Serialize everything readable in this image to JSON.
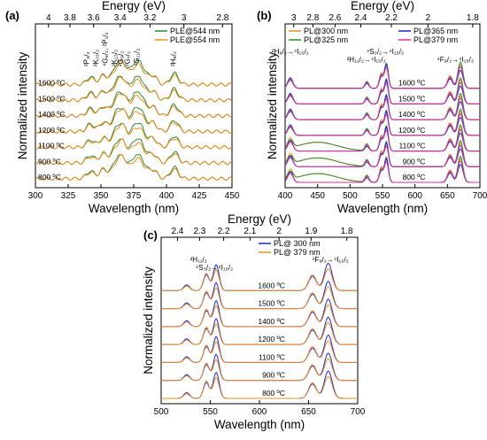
{
  "chart_data": [
    {
      "panel": "(a)",
      "type": "line",
      "xlabel": "Wavelength (nm)",
      "ylabel": "Normalized intensity",
      "top_axis_label": "Energy (eV)",
      "xlim": [
        300,
        450
      ],
      "x_ticks": [
        "300",
        "325",
        "350",
        "375",
        "400",
        "425",
        "450"
      ],
      "top_ticks": [
        {
          "label": "4",
          "nm": 310
        },
        {
          "label": "3.8",
          "nm": 326.3
        },
        {
          "label": "3.6",
          "nm": 344.4
        },
        {
          "label": "3.4",
          "nm": 364.7
        },
        {
          "label": "3.2",
          "nm": 387.5
        },
        {
          "label": "3",
          "nm": 413.3
        },
        {
          "label": "2.8",
          "nm": 442.8
        }
      ],
      "temperatures": [
        "1600 ºC",
        "1500 ºC",
        "1400 ºC",
        "1200 ºC",
        "1100 ºC",
        "900 ºC",
        "800 ºC"
      ],
      "series": [
        {
          "name": "PLE@544 nm",
          "color": "#2e8b2e"
        },
        {
          "name": "PLE@554 nm",
          "color": "#f08c1e"
        }
      ],
      "peaks": [
        {
          "x": 342,
          "h": 0.3,
          "w": 3
        },
        {
          "x": 352,
          "h": 0.35,
          "w": 3
        },
        {
          "x": 362,
          "h": 0.7,
          "w": 3.5
        },
        {
          "x": 367,
          "h": 0.55,
          "w": 3
        },
        {
          "x": 378,
          "h": 1.0,
          "w": 5
        },
        {
          "x": 390,
          "h": 0.3,
          "w": 3
        },
        {
          "x": 406,
          "h": 0.45,
          "w": 3
        }
      ],
      "transitions": [
        {
          "label": "²P₃/₂",
          "nm": 341
        },
        {
          "label": "²K₁₅/₂",
          "nm": 348
        },
        {
          "label": "⁴G₉/₂, ²P₁/₂",
          "nm": 355
        },
        {
          "label": "²K₁₃/₂",
          "nm": 362
        },
        {
          "label": "²G₉/₂",
          "nm": 367
        },
        {
          "label": "²G₇/₂",
          "nm": 372
        },
        {
          "label": "⁴G₁₁/₂",
          "nm": 379
        },
        {
          "label": "²H₉/₂",
          "nm": 407
        }
      ]
    },
    {
      "panel": "(b)",
      "type": "line",
      "xlabel": "Wavelength (nm)",
      "ylabel": "Normalized intensity",
      "top_axis_label": "Energy (eV)",
      "xlim": [
        400,
        700
      ],
      "x_ticks": [
        "400",
        "450",
        "500",
        "550",
        "600",
        "650",
        "700"
      ],
      "top_ticks": [
        {
          "label": "3",
          "nm": 413.3
        },
        {
          "label": "2.8",
          "nm": 442.8
        },
        {
          "label": "2.6",
          "nm": 476.9
        },
        {
          "label": "2.4",
          "nm": 516.6
        },
        {
          "label": "2.2",
          "nm": 563.6
        },
        {
          "label": "2",
          "nm": 620
        },
        {
          "label": "1.8",
          "nm": 688.9
        }
      ],
      "temperatures": [
        "1600 ºC",
        "1500 ºC",
        "1400 ºC",
        "1200 ºC",
        "1100 ºC",
        "900 ºC",
        "800 ºC"
      ],
      "series": [
        {
          "name": "PL@300 nm",
          "color": "#f08c1e"
        },
        {
          "name": "PL@325 nm",
          "color": "#2e8b2e"
        },
        {
          "name": "PL@365 nm",
          "color": "#1a2bd6"
        },
        {
          "name": "PL@379 nm",
          "color": "#e0309a"
        }
      ],
      "peaks": [
        {
          "x": 408,
          "h": 0.4,
          "w": 4
        },
        {
          "x": 526,
          "h": 0.25,
          "w": 3
        },
        {
          "x": 548,
          "h": 0.6,
          "w": 3
        },
        {
          "x": 556,
          "h": 0.9,
          "w": 3
        },
        {
          "x": 654,
          "h": 0.5,
          "w": 4
        },
        {
          "x": 670,
          "h": 0.95,
          "w": 4
        }
      ],
      "transitions": [
        {
          "label": "²H₉/₂→⁴I₁₅/₂",
          "nm": 408
        },
        {
          "label": "²H₁₁/₂→⁴I₁₅/₂",
          "nm": 525
        },
        {
          "label": "⁴S₃/₂→⁴I₁₅/₂",
          "nm": 554
        },
        {
          "label": "⁴F₉/₂→⁴I₁₅/₂",
          "nm": 662
        }
      ]
    },
    {
      "panel": "(c)",
      "type": "line",
      "xlabel": "Wavelength (nm)",
      "ylabel": "Normalized intensity",
      "top_axis_label": "Energy (eV)",
      "xlim": [
        500,
        700
      ],
      "x_ticks": [
        "500",
        "550",
        "600",
        "650",
        "700"
      ],
      "top_ticks": [
        {
          "label": "2.4",
          "nm": 516.6
        },
        {
          "label": "2.3",
          "nm": 539.1
        },
        {
          "label": "2.2",
          "nm": 563.6
        },
        {
          "label": "2.1",
          "nm": 590.4
        },
        {
          "label": "2",
          "nm": 620
        },
        {
          "label": "1.9",
          "nm": 652.6
        },
        {
          "label": "1.8",
          "nm": 688.9
        }
      ],
      "temperatures": [
        "1600 ºC",
        "1500 ºC",
        "1400 ºC",
        "1200 ºC",
        "1100 ºC",
        "900 ºC",
        "800 ºC"
      ],
      "series": [
        {
          "name": "PL@ 300 nm",
          "color": "#1a2bd6"
        },
        {
          "name": "PL@ 379 nm",
          "color": "#f08c1e"
        }
      ],
      "peaks": [
        {
          "x": 526,
          "h": 0.2,
          "w": 3
        },
        {
          "x": 546,
          "h": 0.55,
          "w": 3
        },
        {
          "x": 556,
          "h": 0.9,
          "w": 3
        },
        {
          "x": 654,
          "h": 0.5,
          "w": 4
        },
        {
          "x": 670,
          "h": 0.95,
          "w": 4
        }
      ],
      "transitions": [
        {
          "label": "²H₁₁/₂",
          "nm": 538
        },
        {
          "label": "⁴S₃/₂→⁴I₁₅/₂",
          "nm": 554
        },
        {
          "label": "⁴F₉/₂→⁴I₁₅/₂",
          "nm": 672
        }
      ]
    }
  ]
}
